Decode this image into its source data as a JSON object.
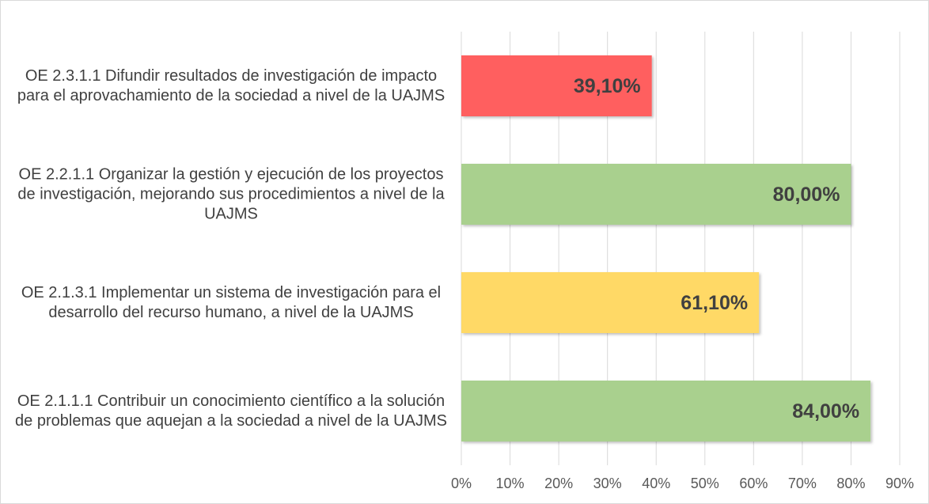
{
  "chart_data": {
    "type": "hbar",
    "categories": [
      "OE 2.3.1.1 Difundir resultados de investigación de impacto para el aprovachamiento de la sociedad a nivel de la UAJMS",
      "OE 2.2.1.1 Organizar la gestión y ejecución de los proyectos de investigación, mejorando sus procedimientos a nivel de la UAJMS",
      "OE 2.1.3.1 Implementar un sistema de investigación para el desarrollo del recurso humano, a nivel de la UAJMS",
      "OE 2.1.1.1 Contribuir un conocimiento científico a la solución de problemas que aquejan a la sociedad a nivel de la UAJMS"
    ],
    "values": [
      39.1,
      80,
      61.1,
      84
    ],
    "value_labels": [
      "39,10%",
      "80,00%",
      "61,10%",
      "84,00%"
    ],
    "colors": [
      "#ff5f5f",
      "#a9d08e",
      "#ffd966",
      "#a9d08e"
    ],
    "xlim": [
      0,
      90
    ],
    "xticks": [
      {
        "value": 0,
        "label": "0%"
      },
      {
        "value": 10,
        "label": "10%"
      },
      {
        "value": 20,
        "label": "20%"
      },
      {
        "value": 30,
        "label": "30%"
      },
      {
        "value": 40,
        "label": "40%"
      },
      {
        "value": 50,
        "label": "50%"
      },
      {
        "value": 60,
        "label": "60%"
      },
      {
        "value": 70,
        "label": "70%"
      },
      {
        "value": 80,
        "label": "80%"
      },
      {
        "value": 90,
        "label": "90%"
      }
    ],
    "grid": true
  }
}
